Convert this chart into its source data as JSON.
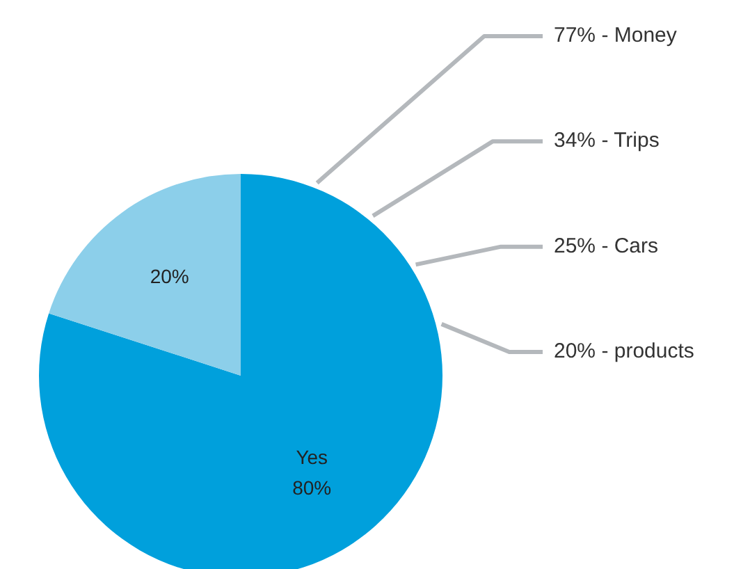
{
  "chart_data": {
    "type": "pie",
    "categories": [
      "Yes",
      null
    ],
    "values": [
      80,
      20
    ],
    "colors": [
      "#00a0dc",
      "#8ccfea"
    ],
    "value_labels": [
      "80%",
      "20%"
    ],
    "annotations": [
      "77% - Money",
      "34% - Trips",
      "25% - Cars",
      "20% - products"
    ]
  }
}
